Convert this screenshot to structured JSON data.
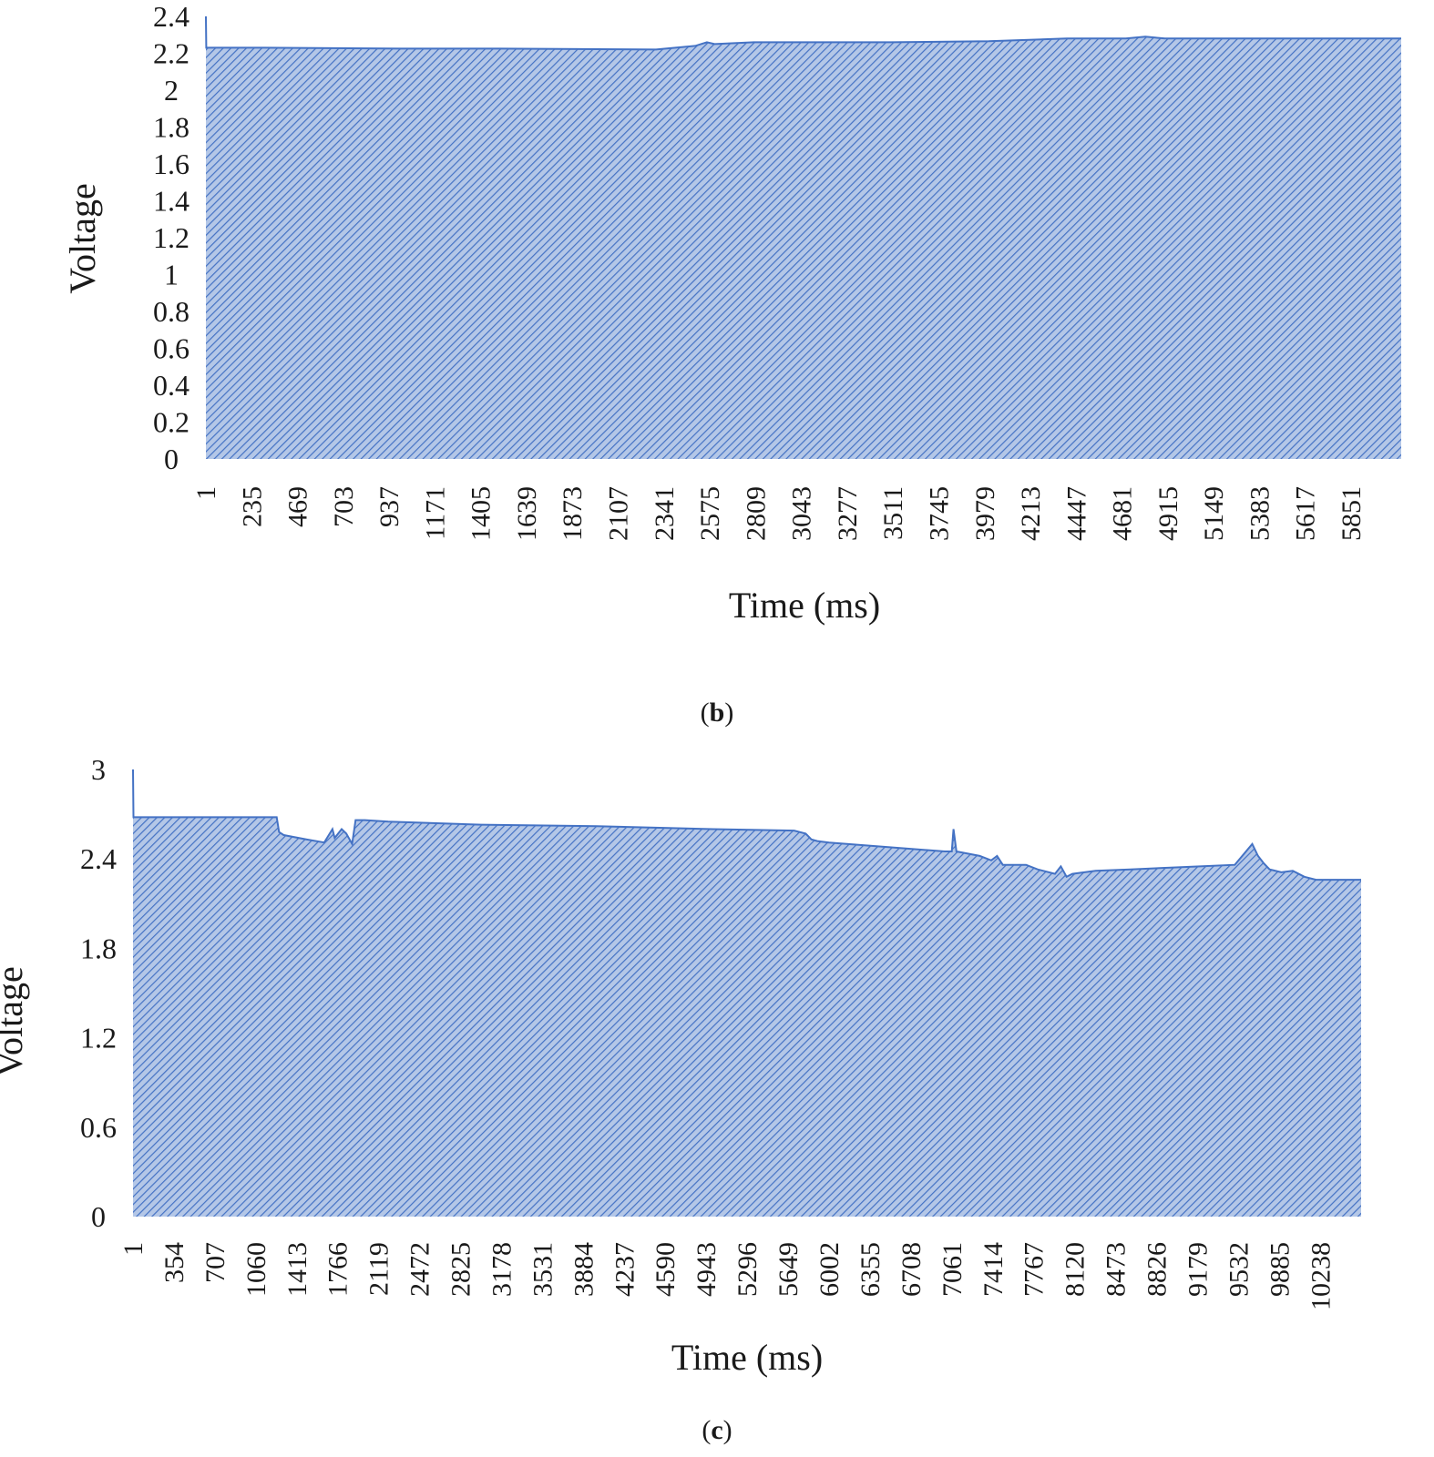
{
  "captions": [
    {
      "open": "(",
      "letter": "b",
      "close": ")"
    },
    {
      "open": "(",
      "letter": "c",
      "close": ")"
    }
  ],
  "colors": {
    "fill": "#b4c7e7",
    "hatch": "#4472c4",
    "line": "#4472c4"
  },
  "chart_data": [
    {
      "type": "area",
      "title": "",
      "xlabel": "Time (ms)",
      "ylabel": "Voltage",
      "ylim": [
        0,
        2.4
      ],
      "yticks": [
        "0",
        "0.2",
        "0.4",
        "0.6",
        "0.8",
        "1",
        "1.2",
        "1.4",
        "1.6",
        "1.8",
        "2",
        "2.2",
        "2.4"
      ],
      "xticks": [
        "1",
        "235",
        "469",
        "703",
        "937",
        "1171",
        "1405",
        "1639",
        "1873",
        "2107",
        "2341",
        "2575",
        "2809",
        "3043",
        "3277",
        "3511",
        "3745",
        "3979",
        "4213",
        "4447",
        "4681",
        "4915",
        "5149",
        "5383",
        "5617",
        "5851"
      ],
      "xlim": [
        1,
        6107
      ],
      "grid": false,
      "x": [
        1,
        3,
        5,
        300,
        1000,
        1500,
        2000,
        2300,
        2400,
        2500,
        2560,
        2600,
        2700,
        2800,
        3000,
        3500,
        4000,
        4400,
        4700,
        4800,
        4850,
        4900,
        5000,
        5500,
        6000,
        6107
      ],
      "y": [
        2.4,
        2.23,
        2.23,
        2.23,
        2.225,
        2.225,
        2.222,
        2.22,
        2.23,
        2.24,
        2.26,
        2.25,
        2.255,
        2.26,
        2.26,
        2.26,
        2.265,
        2.28,
        2.28,
        2.29,
        2.285,
        2.28,
        2.28,
        2.28,
        2.28,
        2.28
      ]
    },
    {
      "type": "area",
      "title": "",
      "xlabel": "Time (ms)",
      "ylabel": "Voltage",
      "ylim": [
        0,
        3
      ],
      "yticks": [
        "0",
        "0.6",
        "1.2",
        "1.8",
        "2.4",
        "3"
      ],
      "xticks": [
        "1",
        "354",
        "707",
        "1060",
        "1413",
        "1766",
        "2119",
        "2472",
        "2825",
        "3178",
        "3531",
        "3884",
        "4237",
        "4590",
        "4943",
        "5296",
        "5649",
        "6002",
        "6355",
        "6708",
        "7061",
        "7414",
        "7767",
        "8120",
        "8473",
        "8826",
        "9179",
        "9532",
        "9885",
        "10238"
      ],
      "xlim": [
        1,
        10589
      ],
      "grid": false,
      "x": [
        1,
        5,
        10,
        600,
        1240,
        1260,
        1300,
        1500,
        1650,
        1720,
        1740,
        1760,
        1800,
        1840,
        1890,
        1920,
        1960,
        2000,
        2200,
        3000,
        4000,
        5000,
        5700,
        5800,
        5850,
        5900,
        6000,
        6500,
        7000,
        7060,
        7075,
        7100,
        7300,
        7400,
        7450,
        7500,
        7700,
        7800,
        7950,
        8000,
        8050,
        8100,
        8300,
        8600,
        8900,
        9200,
        9500,
        9650,
        9700,
        9750,
        9800,
        9900,
        10000,
        10100,
        10200,
        10400,
        10589
      ],
      "y": [
        3.0,
        2.68,
        2.68,
        2.68,
        2.68,
        2.58,
        2.56,
        2.53,
        2.51,
        2.6,
        2.54,
        2.56,
        2.6,
        2.57,
        2.5,
        2.66,
        2.66,
        2.66,
        2.65,
        2.63,
        2.62,
        2.6,
        2.59,
        2.57,
        2.53,
        2.52,
        2.51,
        2.48,
        2.45,
        2.45,
        2.6,
        2.45,
        2.42,
        2.39,
        2.42,
        2.36,
        2.36,
        2.33,
        2.3,
        2.35,
        2.28,
        2.3,
        2.32,
        2.33,
        2.34,
        2.35,
        2.36,
        2.5,
        2.42,
        2.37,
        2.33,
        2.31,
        2.32,
        2.28,
        2.26,
        2.26,
        2.26
      ]
    }
  ]
}
